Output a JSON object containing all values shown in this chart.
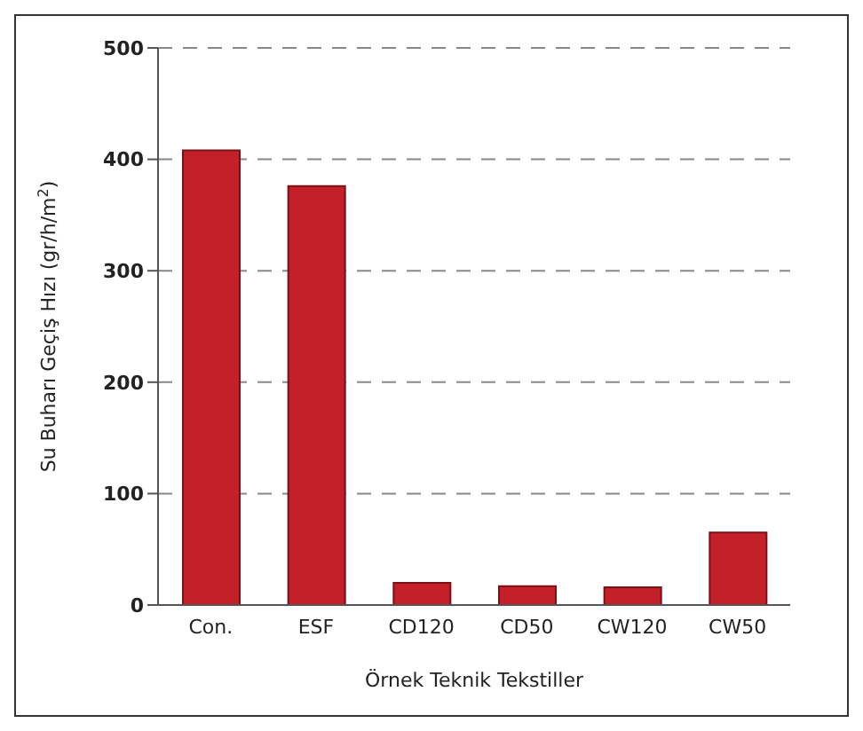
{
  "chart_data": {
    "type": "bar",
    "xlabel": "Örnek Teknik Tekstiller",
    "ylabel": "Su Buharı Geçiş Hızı (gr/h/m$^{2}$)",
    "categories": [
      "Con.",
      "ESF",
      "CD120",
      "CD50",
      "CW120",
      "CW50"
    ],
    "values": [
      408,
      376,
      20,
      17,
      16,
      65
    ],
    "color": "#c4202a",
    "ylim": [
      0,
      500
    ],
    "yticks": [
      0,
      100,
      200,
      300,
      400,
      500
    ],
    "grid": "y"
  }
}
